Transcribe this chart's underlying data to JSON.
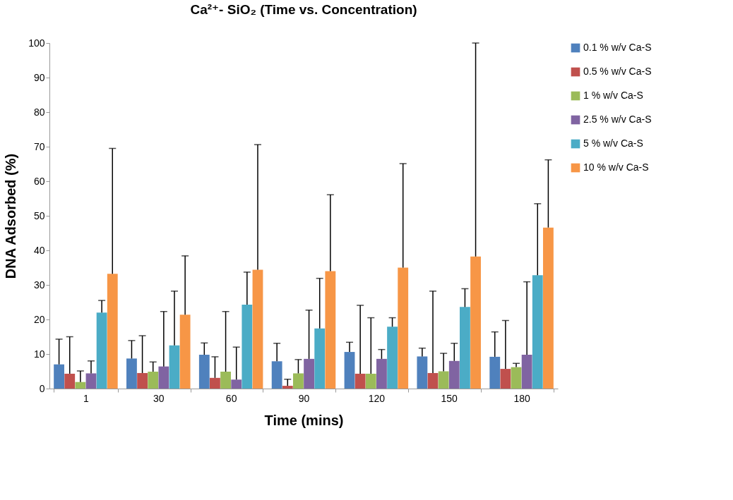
{
  "chart_data": {
    "type": "bar",
    "title": "Ca²⁺- SiO₂ (Time vs. Concentration)",
    "xlabel": "Time (mins)",
    "ylabel": "DNA Adsorbed (%)",
    "categories": [
      "1",
      "30",
      "60",
      "90",
      "120",
      "150",
      "180"
    ],
    "series": [
      {
        "name": "0.1 % w/v Ca-S",
        "color": "#4f81bd",
        "values": [
          7,
          8.7,
          9.8,
          7.9,
          10.6,
          9.3,
          9.2
        ],
        "errors": [
          [
            7,
            14.3
          ],
          [
            8.7,
            13.9
          ],
          [
            9.8,
            13.2
          ],
          [
            7.9,
            13.1
          ],
          [
            10.6,
            13.4
          ],
          [
            9.3,
            11.7
          ],
          [
            9.2,
            16.4
          ]
        ]
      },
      {
        "name": "0.5 % w/v Ca-S",
        "color": "#c0504d",
        "values": [
          4.3,
          4.5,
          3.1,
          0.8,
          4.3,
          4.5,
          5.7
        ],
        "errors": [
          [
            4.3,
            15
          ],
          [
            4.5,
            15.3
          ],
          [
            3.1,
            9.2
          ],
          [
            0.8,
            2.7
          ],
          [
            4.3,
            24.1
          ],
          [
            4.5,
            28.2
          ],
          [
            5.7,
            19.7
          ]
        ]
      },
      {
        "name": "1 % w/v Ca-S",
        "color": "#9bbb59",
        "values": [
          1.9,
          4.9,
          4.9,
          4.4,
          4.3,
          5,
          6.2
        ],
        "errors": [
          [
            1.9,
            5.1
          ],
          [
            4.9,
            7.7
          ],
          [
            4.9,
            22.3
          ],
          [
            4.4,
            8.4
          ],
          [
            4.3,
            20.5
          ],
          [
            5,
            10.2
          ],
          [
            6.2,
            7.3
          ]
        ]
      },
      {
        "name": "2.5 % w/v Ca-S",
        "color": "#8064a2",
        "values": [
          4.4,
          6.4,
          2.6,
          8.6,
          8.6,
          8,
          9.8
        ],
        "errors": [
          [
            4.4,
            8
          ],
          [
            6.4,
            22.3
          ],
          [
            2.6,
            12
          ],
          [
            8.6,
            22.7
          ],
          [
            8.6,
            11.3
          ],
          [
            8,
            13.1
          ],
          [
            9.8,
            30.9
          ]
        ]
      },
      {
        "name": "5 % w/v Ca-S",
        "color": "#4bacc6",
        "values": [
          22,
          12.5,
          24.3,
          17.4,
          17.9,
          23.6,
          32.8
        ],
        "errors": [
          [
            22,
            25.5
          ],
          [
            12.5,
            28.2
          ],
          [
            24.3,
            33.7
          ],
          [
            17.4,
            31.9
          ],
          [
            17.9,
            20.5
          ],
          [
            23.6,
            28.9
          ],
          [
            32.8,
            53.5
          ]
        ]
      },
      {
        "name": "10 % w/v Ca-S",
        "color": "#f79646",
        "values": [
          33.2,
          21.4,
          34.4,
          34,
          35,
          38.2,
          46.6
        ],
        "errors": [
          [
            33.2,
            69.5
          ],
          [
            21.4,
            38.4
          ],
          [
            34.4,
            70.6
          ],
          [
            34,
            56.1
          ],
          [
            35,
            65.1
          ],
          [
            38.2,
            100
          ],
          [
            46.6,
            66.2
          ]
        ]
      }
    ],
    "ylim": [
      0,
      100
    ],
    "yticks": [
      0,
      10,
      20,
      30,
      40,
      50,
      60,
      70,
      80,
      90,
      100
    ],
    "grid": false,
    "legend": "right"
  }
}
